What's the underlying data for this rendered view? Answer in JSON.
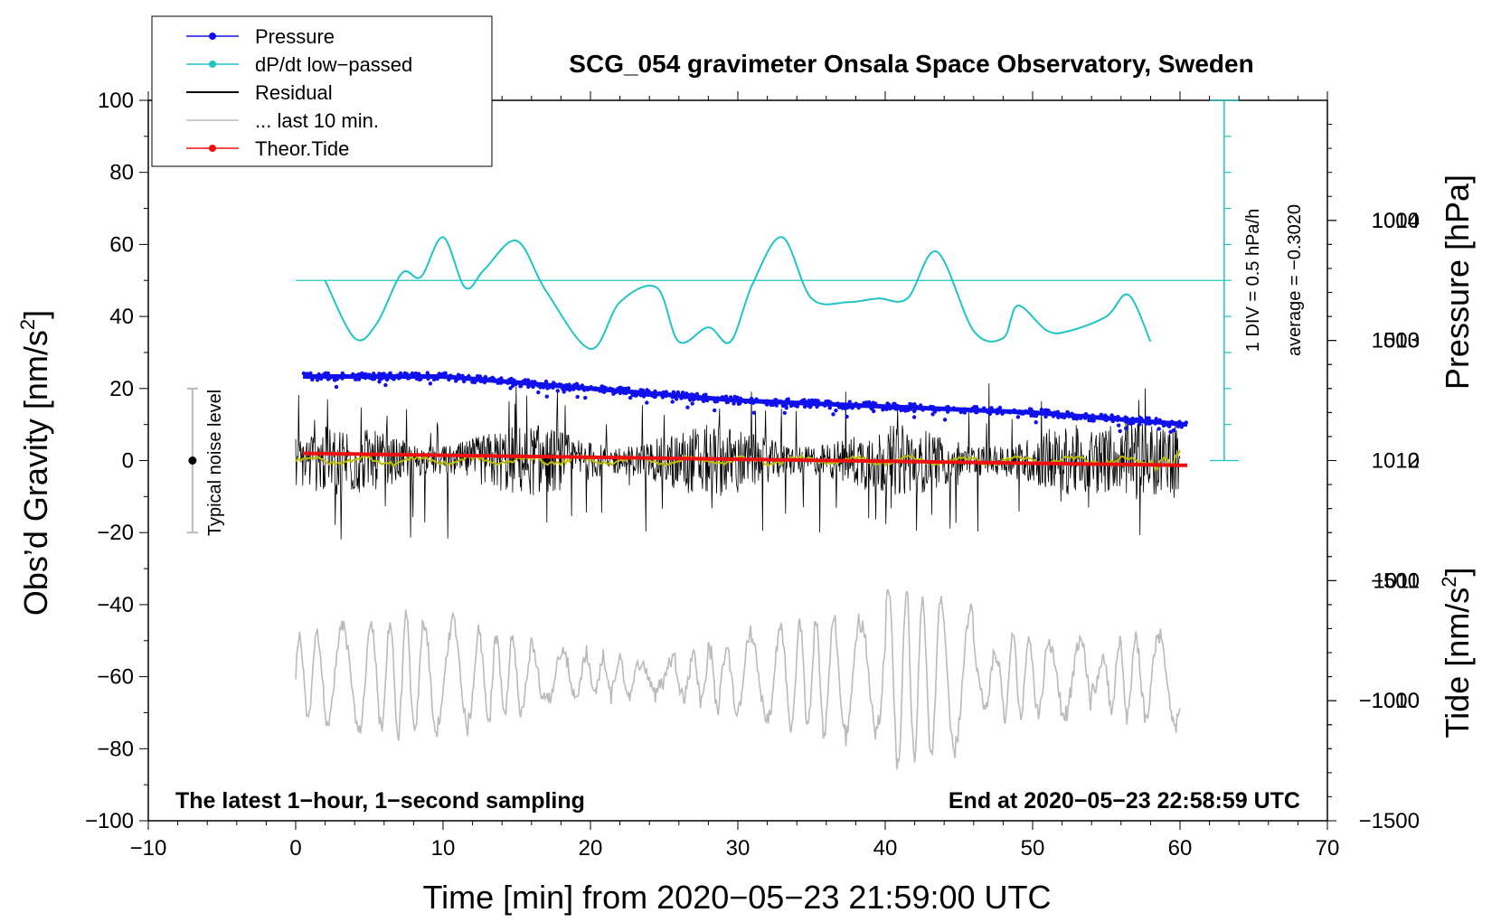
{
  "chart_data": {
    "type": "line",
    "title": "SCG_054 gravimeter Onsala Space Observatory, Sweden",
    "xlabel": "Time [min] from 2020−05−23 21:59:00 UTC",
    "ylabel_left": "Obs’d Gravity [nm/s",
    "ylabel_left_sup": "2",
    "ylabel_left_end": "]",
    "ylabel_right_pressure": "Pressure [hPa]",
    "ylabel_right_tide": "Tide [nm/s",
    "ylabel_right_tide_sup": "2",
    "ylabel_right_tide_end": "]",
    "xlim": [
      -10,
      70
    ],
    "ylim": [
      -100,
      100
    ],
    "pressure_lim": [
      1009,
      1015
    ],
    "tide_lim": [
      -1500,
      1500
    ],
    "x_ticks": [
      "−10",
      "0",
      "10",
      "20",
      "30",
      "40",
      "50",
      "60",
      "70"
    ],
    "y_ticks": [
      "100",
      "80",
      "60",
      "40",
      "20",
      "0",
      "−20",
      "−40",
      "−60",
      "−80",
      "−100"
    ],
    "pressure_ticks": [
      "1014",
      "1013",
      "1012",
      "1011",
      "1010"
    ],
    "tide_ticks": [
      "1000",
      "500",
      "0",
      "−500",
      "−1000",
      "−1500"
    ],
    "legend": [
      {
        "label": "Pressure",
        "color": "#1010ee",
        "marker": true
      },
      {
        "label": "dP/dt low−passed",
        "color": "#20c4c4",
        "marker": true
      },
      {
        "label": "Residual",
        "color": "#000000",
        "marker": false
      },
      {
        "label": "... last 10 min.",
        "color": "#bbbbbb",
        "marker": false
      },
      {
        "label": "Theor.Tide",
        "color": "#ee1010",
        "marker": true
      }
    ],
    "annotations": {
      "bottom_left": "The latest 1−hour, 1−second sampling",
      "bottom_right": "End at 2020−05−23 22:58:59 UTC",
      "noise_label": "Typical noise level",
      "dpdt_scale": "1 DIV = 0.5 hPa/h",
      "dpdt_average": "average = −0.3020"
    },
    "noise_bar": {
      "x": -7,
      "center": 0,
      "half_range": 20
    },
    "series": {
      "pressure": {
        "axis": "pressure",
        "x": [
          0.5,
          10,
          20,
          30,
          40,
          50,
          60.5
        ],
        "values": [
          1012.7,
          1012.7,
          1012.6,
          1012.5,
          1012.45,
          1012.4,
          1012.3
        ]
      },
      "dpdt": {
        "axis": "gravity",
        "x": [
          2,
          4,
          5.5,
          7.2,
          8.5,
          10,
          11.5,
          12.8,
          15,
          17,
          20,
          22,
          24.5,
          26,
          28,
          29.5,
          31,
          33,
          35,
          37.5,
          39.5,
          41.5,
          43.5,
          46,
          48,
          49,
          51,
          52.5,
          55,
          56.5,
          58
        ],
        "values": [
          50,
          34,
          38,
          52,
          51,
          62,
          48,
          53,
          61,
          47,
          31,
          44,
          48,
          33,
          37,
          33,
          49,
          62,
          45,
          44,
          45,
          45,
          58,
          36,
          34,
          43,
          36,
          36,
          40,
          46,
          33
        ]
      },
      "residual": {
        "axis": "gravity",
        "x_start": 0,
        "x_end": 60,
        "peak_amplitude": 22,
        "min": -28,
        "max": 26
      },
      "residual_smoothed": {
        "axis": "gravity",
        "x_start": 0,
        "x_end": 60,
        "mean": 0
      },
      "last_10_min": {
        "axis": "gravity",
        "x_start": 0,
        "x_end": 60,
        "center": -60,
        "min": -91,
        "max": -36
      },
      "theor_tide": {
        "axis": "tide",
        "x": [
          0.5,
          60.5
        ],
        "values": [
          30,
          -20
        ]
      }
    },
    "zero_line": {
      "axis": "gravity",
      "value": 50
    },
    "dpdt_axis": {
      "x": 63,
      "from": 0,
      "to": 100,
      "div": 10
    }
  }
}
